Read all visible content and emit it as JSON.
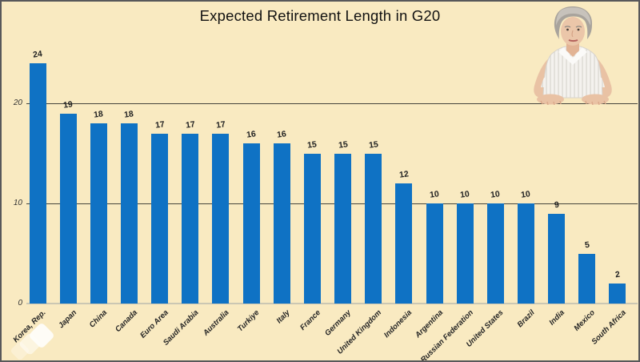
{
  "title": "Expected Retirement Length in G20",
  "colors": {
    "background": "#F9EAC1",
    "border": "#58585A",
    "bar": "#0F72C4",
    "gridline": "#45443C",
    "baseline": "#CBC7B3",
    "title_text": "#111111",
    "label_text": "#232323",
    "tick_text": "#333333",
    "watermark": "#FFFFFF"
  },
  "chart_data": {
    "type": "bar",
    "title": "Expected Retirement Length in G20",
    "categories": [
      "Korea, Rep.",
      "Japan",
      "China",
      "Canada",
      "Euro Area",
      "Saudi Arabia",
      "Australia",
      "Turkiye",
      "Italy",
      "France",
      "Germany",
      "United Kingdom",
      "Indonesia",
      "Argentina",
      "Russian Federation",
      "United States",
      "Brazil",
      "India",
      "Mexico",
      "South Africa"
    ],
    "values": [
      24,
      19,
      18,
      18,
      17,
      17,
      17,
      16,
      16,
      15,
      15,
      15,
      12,
      10,
      10,
      10,
      10,
      9,
      5,
      2
    ],
    "xlabel": "",
    "ylabel": "",
    "ylim": [
      0,
      25
    ],
    "yticks": [
      0,
      10,
      20
    ],
    "grid": "horizontal",
    "legend": "none",
    "data_labels": true,
    "x_label_rotation": 45
  },
  "decorations": {
    "photo": "elderly woman with gray hair in striped blouse resting hands on table",
    "watermark": "overlapping white diamond shapes"
  }
}
